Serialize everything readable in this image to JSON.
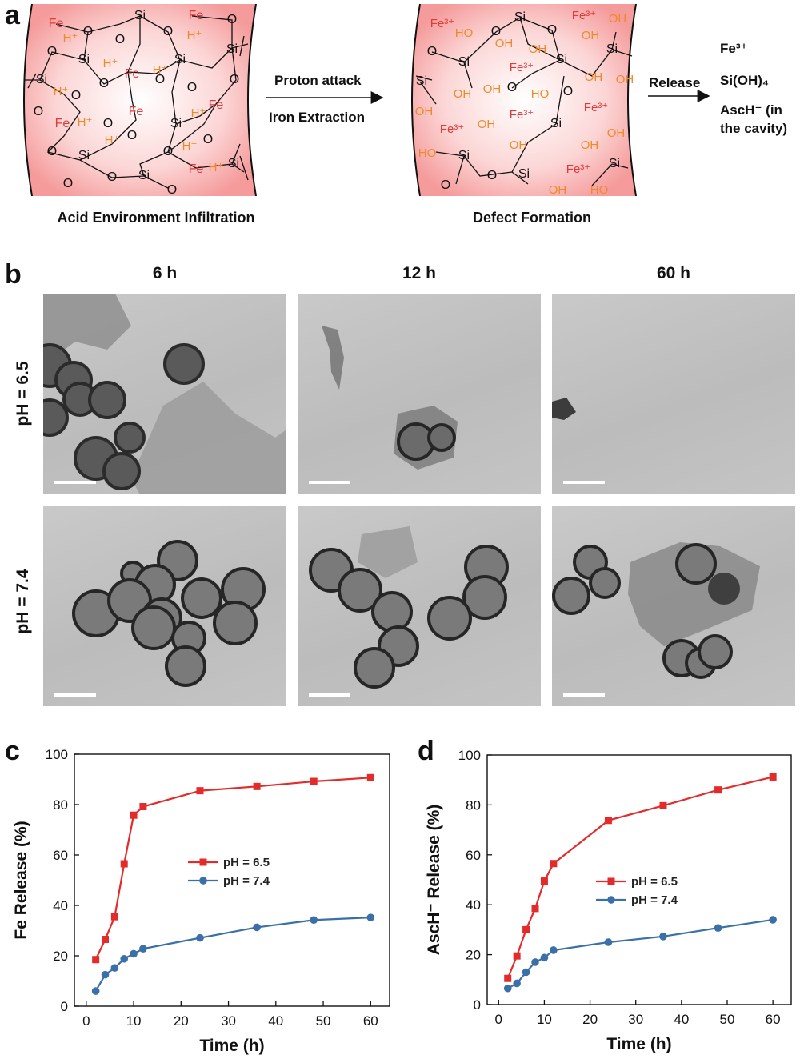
{
  "figure": {
    "panel_a": {
      "letter": "a",
      "left_caption": "Acid Environment Infiltration",
      "right_caption": "Defect Formation",
      "arrow1_top": "Proton attack",
      "arrow1_bottom": "Iron Extraction",
      "arrow2_label": "Release",
      "products": [
        "Fe³⁺",
        "Si(OH)₄",
        "AscH⁻ (in",
        "the cavity)"
      ],
      "left_labels": {
        "fe": "Fe",
        "si": "Si",
        "o": "O",
        "h": "H⁺"
      },
      "right_labels": {
        "fe3": "Fe³⁺",
        "si": "Si",
        "o": "O",
        "oh": "OH",
        "ho": "HO"
      },
      "colors": {
        "fe": "#e03a3a",
        "h": "#ef8a2a",
        "oh": "#ef8a2a",
        "wall": "#f7a6a6"
      }
    },
    "panel_b": {
      "letter": "b",
      "columns": [
        "6 h",
        "12 h",
        "60 h"
      ],
      "rows": [
        "pH = 6.5",
        "pH = 7.4"
      ]
    },
    "panel_c": {
      "letter": "c"
    },
    "panel_d": {
      "letter": "d"
    }
  },
  "chart_data": [
    {
      "type": "line",
      "panel": "c",
      "xlabel": "Time (h)",
      "ylabel": "Fe Release (%)",
      "xlim": [
        -2.5,
        64
      ],
      "ylim": [
        0,
        100
      ],
      "xticks": [
        0,
        10,
        20,
        30,
        40,
        50,
        60
      ],
      "yticks": [
        0,
        20,
        40,
        60,
        80,
        100
      ],
      "legend_position": "center",
      "series": [
        {
          "name": "pH = 6.5",
          "color": "#e32b2b",
          "marker": "square",
          "x": [
            2,
            4,
            6,
            8,
            10,
            12,
            24,
            36,
            48,
            60
          ],
          "y": [
            18.5,
            26.5,
            35.5,
            56.5,
            75.8,
            79.2,
            85.5,
            87.2,
            89.2,
            90.7
          ]
        },
        {
          "name": "pH = 7.4",
          "color": "#3a6fa8",
          "marker": "circle",
          "x": [
            2,
            4,
            6,
            8,
            10,
            12,
            24,
            36,
            48,
            60
          ],
          "y": [
            6.0,
            12.5,
            15.2,
            18.8,
            20.8,
            22.8,
            27.1,
            31.3,
            34.2,
            35.2
          ]
        }
      ]
    },
    {
      "type": "line",
      "panel": "d",
      "xlabel": "Time (h)",
      "ylabel": "AscH⁻ Release (%)",
      "xlim": [
        -2.5,
        64
      ],
      "ylim": [
        0,
        100
      ],
      "xticks": [
        0,
        10,
        20,
        30,
        40,
        50,
        60
      ],
      "yticks": [
        0,
        20,
        40,
        60,
        80,
        100
      ],
      "legend_position": "center",
      "series": [
        {
          "name": "pH = 6.5",
          "color": "#e32b2b",
          "marker": "square",
          "x": [
            2,
            4,
            6,
            8,
            10,
            12,
            24,
            36,
            48,
            60
          ],
          "y": [
            10.5,
            19.5,
            30.0,
            38.5,
            49.5,
            56.5,
            73.8,
            79.7,
            86.0,
            91.2
          ]
        },
        {
          "name": "pH = 7.4",
          "color": "#3a6fa8",
          "marker": "circle",
          "x": [
            2,
            4,
            6,
            8,
            10,
            12,
            24,
            36,
            48,
            60
          ],
          "y": [
            6.5,
            8.5,
            13.0,
            17.0,
            18.8,
            21.8,
            25.0,
            27.3,
            30.7,
            34.0
          ]
        }
      ]
    }
  ]
}
